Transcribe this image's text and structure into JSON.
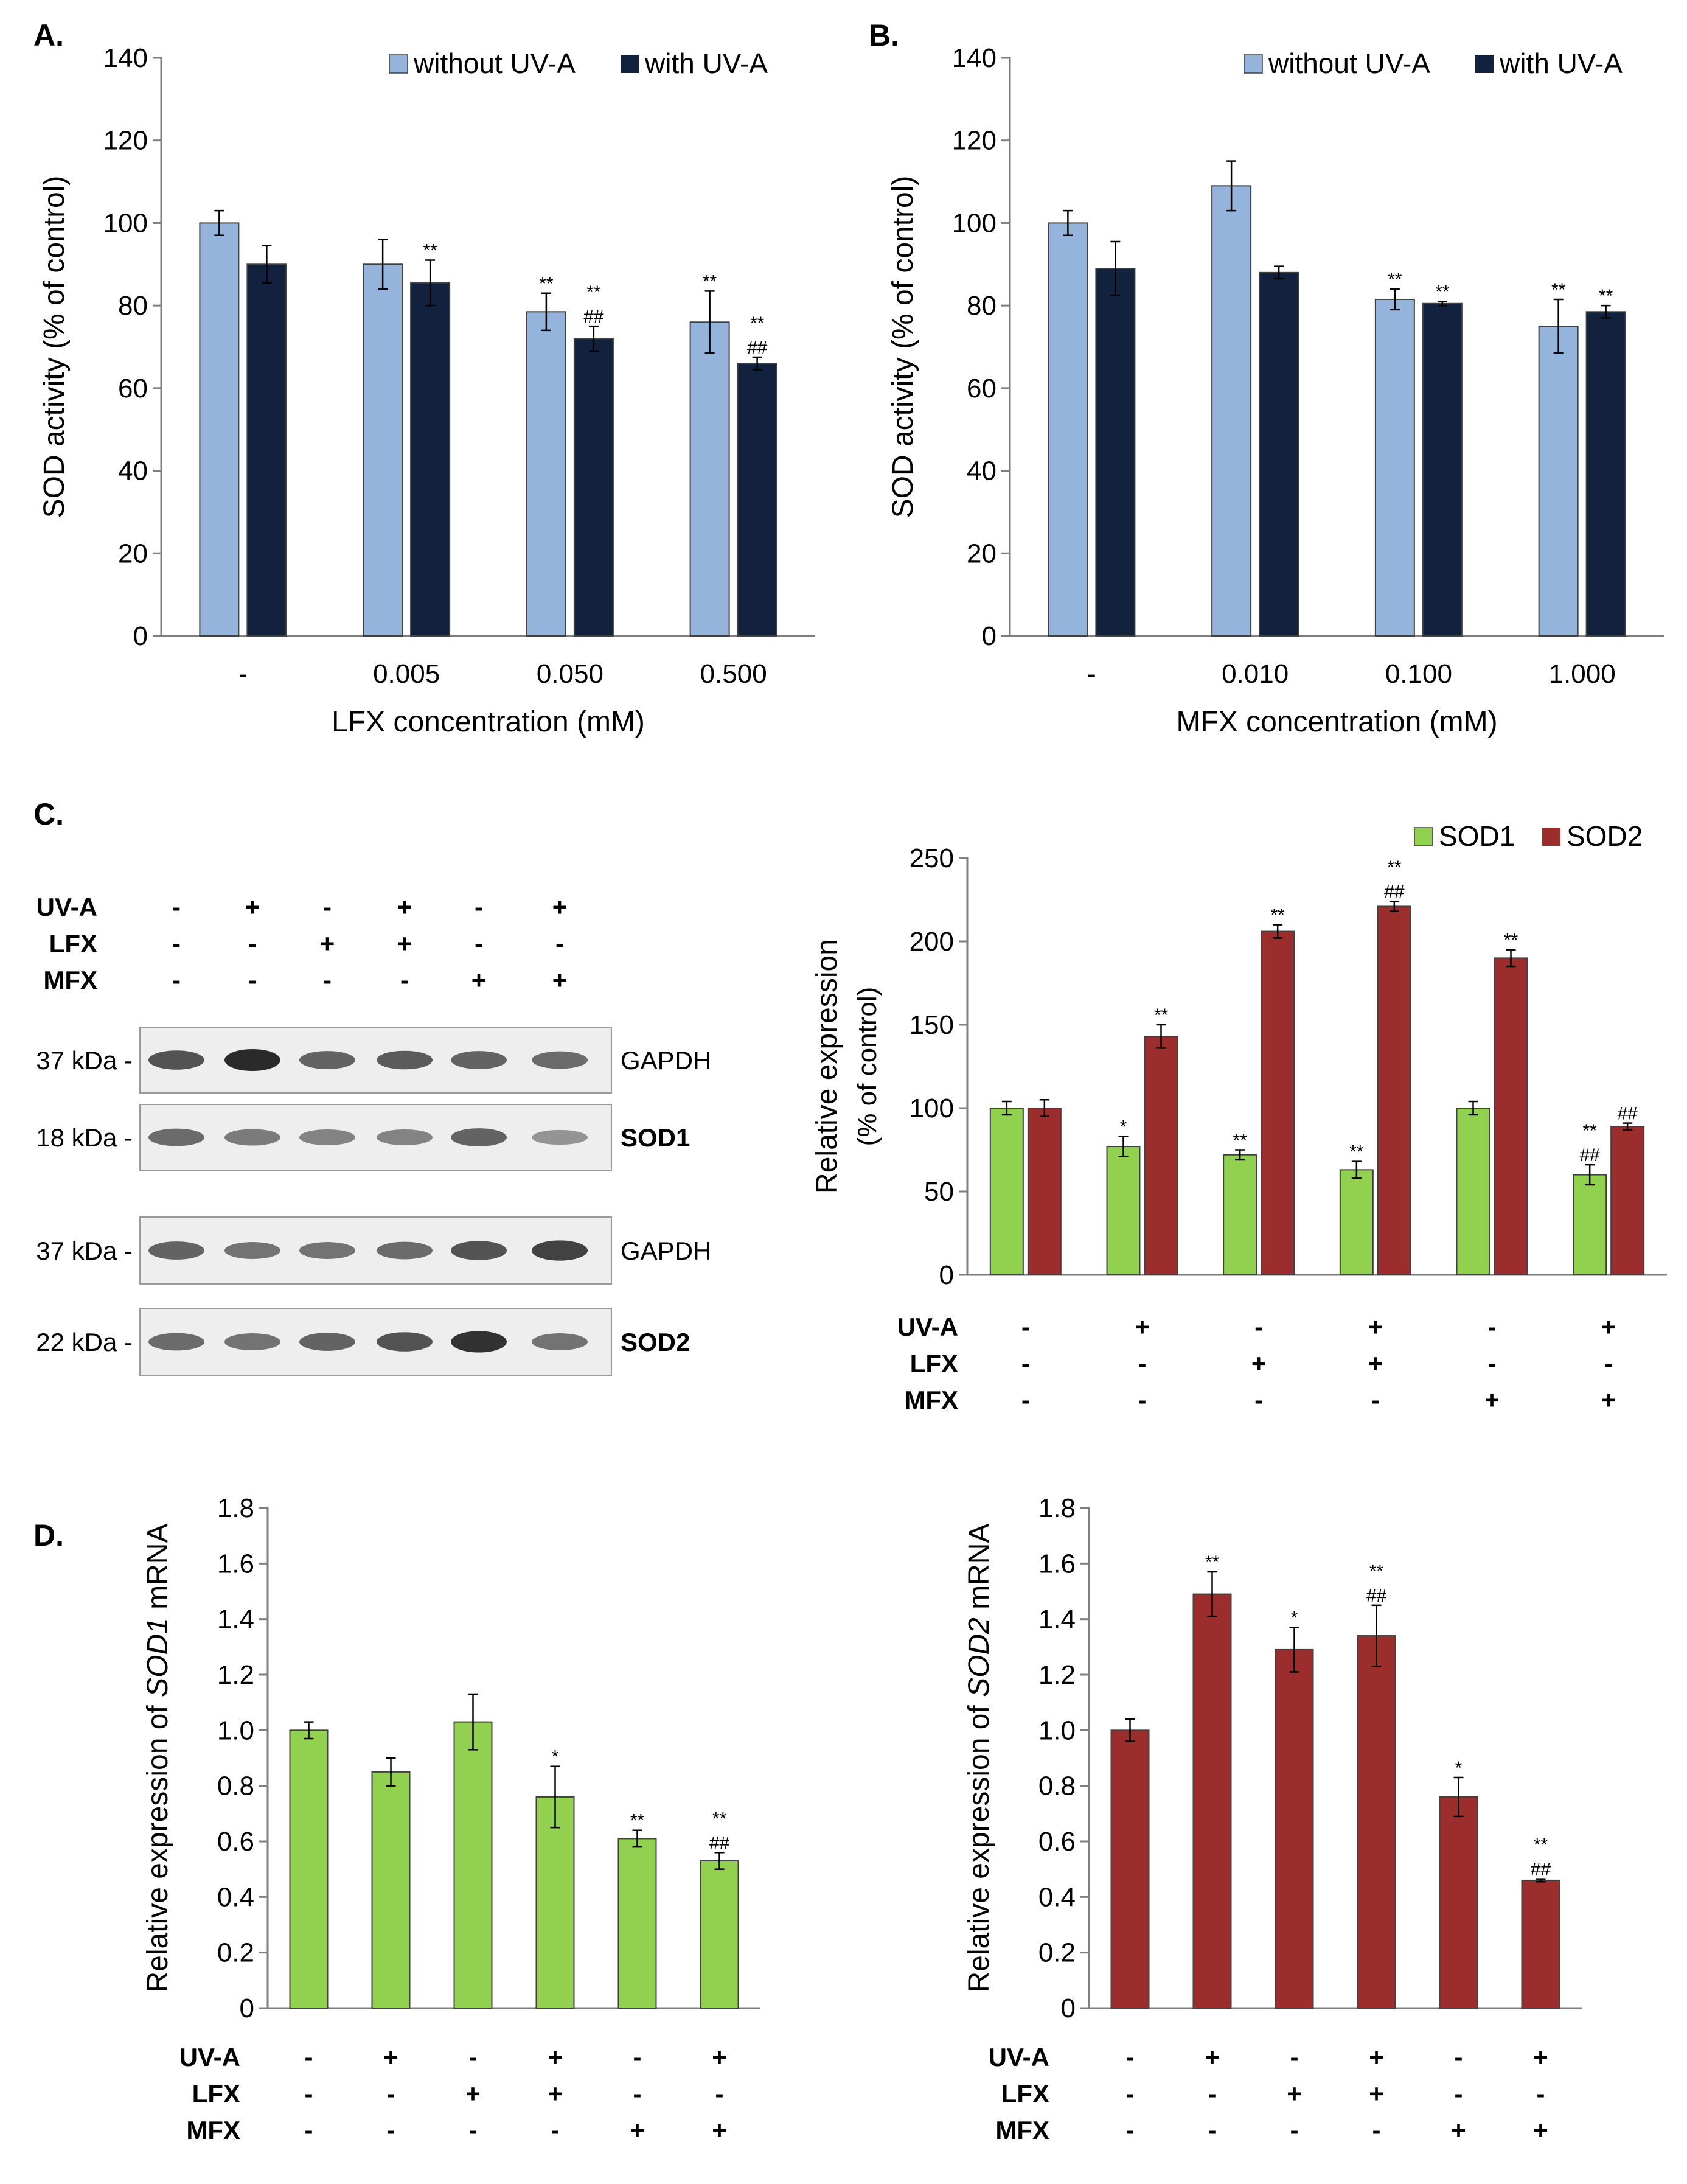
{
  "colors": {
    "light_blue": "#94b4dc",
    "dark_navy": "#12223e",
    "green": "#92d050",
    "dark_red": "#9b2d2d"
  },
  "condition_labels": [
    "UV-A",
    "LFX",
    "MFX"
  ],
  "panel_labels": [
    "A.",
    "B.",
    "C.",
    "D."
  ],
  "chart_data": [
    {
      "id": "A",
      "type": "bar",
      "title": "",
      "xlabel": "LFX concentration (mM)",
      "ylabel": "SOD activity (% of control)",
      "ylim": [
        0,
        140
      ],
      "yticks": [
        "0",
        "20",
        "40",
        "60",
        "80",
        "100",
        "120",
        "140"
      ],
      "categories": [
        "-",
        "0.005",
        "0.050",
        "0.500"
      ],
      "legend": "top-right",
      "series": [
        {
          "name": "without UV-A",
          "values": [
            100,
            90,
            78.5,
            76
          ],
          "errors": [
            3,
            6,
            4.5,
            7.5
          ],
          "annotations": [
            "",
            "",
            "**",
            "**"
          ]
        },
        {
          "name": "with UV-A",
          "values": [
            90,
            85.5,
            72,
            66
          ],
          "errors": [
            4.5,
            5.5,
            3,
            1.5
          ],
          "annotations": [
            "",
            "**",
            "**|##",
            "**|##"
          ]
        }
      ]
    },
    {
      "id": "B",
      "type": "bar",
      "title": "",
      "xlabel": "MFX concentration (mM)",
      "ylabel": "SOD activity (% of control)",
      "ylim": [
        0,
        140
      ],
      "yticks": [
        "0",
        "20",
        "40",
        "60",
        "80",
        "100",
        "120",
        "140"
      ],
      "categories": [
        "-",
        "0.010",
        "0.100",
        "1.000"
      ],
      "legend": "top-right",
      "series": [
        {
          "name": "without UV-A",
          "values": [
            100,
            109,
            81.5,
            75
          ],
          "errors": [
            3,
            6,
            2.5,
            6.5
          ],
          "annotations": [
            "",
            "",
            "**",
            "**"
          ]
        },
        {
          "name": "with UV-A",
          "values": [
            89,
            88,
            80.5,
            78.5
          ],
          "errors": [
            6.5,
            1.5,
            0.5,
            1.5
          ],
          "annotations": [
            "",
            "",
            "**",
            "**"
          ]
        }
      ]
    },
    {
      "id": "C",
      "type": "bar",
      "title": "",
      "xlabel": "",
      "ylabel": "Relative expression",
      "ylabel2": "(% of control)",
      "ylim": [
        0,
        250
      ],
      "yticks": [
        "0",
        "50",
        "100",
        "150",
        "200",
        "250"
      ],
      "legend": "top-right",
      "conditions": {
        "UV-A": [
          "-",
          "+",
          "-",
          "+",
          "-",
          "+"
        ],
        "LFX": [
          "-",
          "-",
          "+",
          "+",
          "-",
          "-"
        ],
        "MFX": [
          "-",
          "-",
          "-",
          "-",
          "+",
          "+"
        ]
      },
      "series": [
        {
          "name": "SOD1",
          "values": [
            100,
            77,
            72,
            63,
            100,
            60
          ],
          "errors": [
            4,
            6,
            3,
            5,
            4,
            6
          ],
          "annotations": [
            "",
            "*",
            "**",
            "**",
            "",
            "**|##"
          ]
        },
        {
          "name": "SOD2",
          "values": [
            100,
            143,
            206,
            221,
            190,
            89
          ],
          "errors": [
            5,
            7,
            4,
            3,
            5,
            2
          ],
          "annotations": [
            "",
            "**",
            "**",
            "**|##",
            "**",
            "##"
          ]
        }
      ]
    },
    {
      "id": "D1",
      "type": "bar",
      "title": "",
      "xlabel": "",
      "ylabel_prefix": "Relative expression of ",
      "ylabel_gene": "SOD1",
      "ylabel_suffix": " mRNA",
      "ylim": [
        0,
        1.8
      ],
      "yticks": [
        "0",
        "0.2",
        "0.4",
        "0.6",
        "0.8",
        "1.0",
        "1.2",
        "1.4",
        "1.6",
        "1.8"
      ],
      "conditions": {
        "UV-A": [
          "-",
          "+",
          "-",
          "+",
          "-",
          "+"
        ],
        "LFX": [
          "-",
          "-",
          "+",
          "+",
          "-",
          "-"
        ],
        "MFX": [
          "-",
          "-",
          "-",
          "-",
          "+",
          "+"
        ]
      },
      "series": [
        {
          "name": "SOD1 mRNA",
          "values": [
            1.0,
            0.85,
            1.03,
            0.76,
            0.61,
            0.53
          ],
          "errors": [
            0.03,
            0.05,
            0.1,
            0.11,
            0.03,
            0.03
          ],
          "annotations": [
            "",
            "",
            "",
            "*",
            "**",
            "**|##"
          ]
        }
      ]
    },
    {
      "id": "D2",
      "type": "bar",
      "title": "",
      "xlabel": "",
      "ylabel_prefix": "Relative expression of ",
      "ylabel_gene": "SOD2",
      "ylabel_suffix": " mRNA",
      "ylim": [
        0,
        1.8
      ],
      "yticks": [
        "0",
        "0.2",
        "0.4",
        "0.6",
        "0.8",
        "1.0",
        "1.2",
        "1.4",
        "1.6",
        "1.8"
      ],
      "conditions": {
        "UV-A": [
          "-",
          "+",
          "-",
          "+",
          "-",
          "+"
        ],
        "LFX": [
          "-",
          "-",
          "+",
          "+",
          "-",
          "-"
        ],
        "MFX": [
          "-",
          "-",
          "-",
          "-",
          "+",
          "+"
        ]
      },
      "series": [
        {
          "name": "SOD2 mRNA",
          "values": [
            1.0,
            1.49,
            1.29,
            1.34,
            0.76,
            0.46
          ],
          "errors": [
            0.04,
            0.08,
            0.08,
            0.11,
            0.07,
            0.005
          ],
          "annotations": [
            "",
            "**",
            "*",
            "**|##",
            "*",
            "**|##"
          ]
        }
      ]
    }
  ],
  "western_blot": {
    "conditions": {
      "UV-A": [
        "-",
        "+",
        "-",
        "+",
        "-",
        "+"
      ],
      "LFX": [
        "-",
        "-",
        "+",
        "+",
        "-",
        "-"
      ],
      "MFX": [
        "-",
        "-",
        "-",
        "-",
        "+",
        "+"
      ]
    },
    "rows": [
      {
        "size": "37 kDa -",
        "protein": "GAPDH",
        "bold": false,
        "intensity": [
          0.75,
          1.0,
          0.65,
          0.7,
          0.65,
          0.6
        ]
      },
      {
        "size": "18 kDa -",
        "protein": "SOD1",
        "bold": true,
        "intensity": [
          0.6,
          0.5,
          0.45,
          0.45,
          0.65,
          0.35
        ]
      },
      {
        "size": "37 kDa -",
        "protein": "GAPDH",
        "bold": false,
        "intensity": [
          0.65,
          0.55,
          0.55,
          0.6,
          0.75,
          0.85
        ]
      },
      {
        "size": "22 kDa -",
        "protein": "SOD2",
        "bold": true,
        "intensity": [
          0.6,
          0.55,
          0.65,
          0.75,
          0.95,
          0.55
        ]
      }
    ]
  }
}
